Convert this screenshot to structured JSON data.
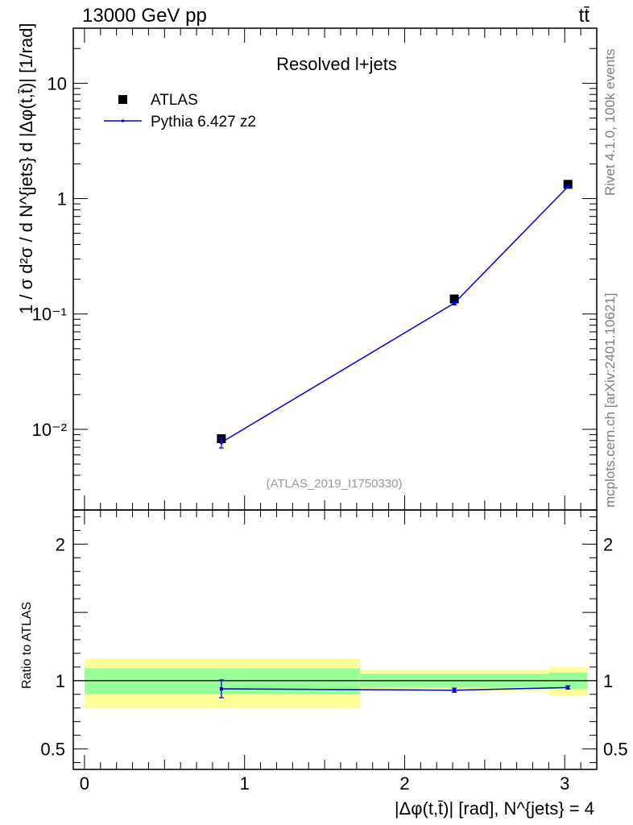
{
  "header": {
    "energy_label": "13000 GeV pp",
    "process_label": "tt̄"
  },
  "side": {
    "rivet_label": "Rivet 4.1.0,  100k events",
    "mcplots_label": "mcplots.cern.ch [arXiv:2401.10621]"
  },
  "chart_data": [
    {
      "type": "scatter",
      "panel": "main",
      "title": "Resolved l+jets",
      "analysis_label": "(ATLAS_2019_I1750330)",
      "ylabel": "1 / σ d²σ / d N^{jets} d |Δφ(t,t̄)| [1/rad]",
      "yscale": "log",
      "ylim": [
        0.002,
        30
      ],
      "xlim": [
        -0.07,
        3.2
      ],
      "y_ticks": [
        {
          "value": 0.01,
          "label": "10⁻²"
        },
        {
          "value": 0.1,
          "label": "10⁻¹"
        },
        {
          "value": 1,
          "label": "1"
        },
        {
          "value": 10,
          "label": "10"
        }
      ],
      "legend_position": "top-left",
      "series": [
        {
          "name": "ATLAS",
          "style": "marker",
          "color": "#000000",
          "x": [
            0.855,
            2.31,
            3.02
          ],
          "y": [
            0.0083,
            0.135,
            1.33
          ]
        },
        {
          "name": "Pythia 6.427 z2",
          "style": "line",
          "color": "#0000dd",
          "x": [
            0.855,
            2.31,
            3.02
          ],
          "y": [
            0.0077,
            0.124,
            1.27
          ],
          "yerr": [
            0.0008,
            0.004,
            0.03
          ]
        }
      ]
    },
    {
      "type": "line",
      "panel": "ratio",
      "ylabel": "Ratio to ATLAS",
      "xlabel": "|Δφ(t,t̄)| [rad], N^{jets} = 4",
      "ylim": [
        0.35,
        2.25
      ],
      "xlim": [
        -0.07,
        3.2
      ],
      "y_ticks": [
        {
          "value": 0.5,
          "label": "0.5"
        },
        {
          "value": 1,
          "label": "1"
        },
        {
          "value": 2,
          "label": "2"
        }
      ],
      "x_ticks": [
        {
          "value": 0,
          "label": "0"
        },
        {
          "value": 1,
          "label": "1"
        },
        {
          "value": 2,
          "label": "2"
        },
        {
          "value": 3,
          "label": "3"
        }
      ],
      "bands": [
        {
          "x_lo": 0.0,
          "x_hi": 1.72,
          "y1_lo": 0.9,
          "y1_hi": 1.09,
          "y2_lo": 0.8,
          "y2_hi": 1.16
        },
        {
          "x_lo": 1.72,
          "x_hi": 2.9,
          "y1_lo": 0.95,
          "y1_hi": 1.05,
          "y2_lo": 0.92,
          "y2_hi": 1.08
        },
        {
          "x_lo": 2.9,
          "x_hi": 3.14,
          "y1_lo": 0.94,
          "y1_hi": 1.06,
          "y2_lo": 0.89,
          "y2_hi": 1.1
        }
      ],
      "series": [
        {
          "name": "Pythia 6.427 z2",
          "color": "#0000dd",
          "x": [
            0.855,
            2.31,
            3.02
          ],
          "y": [
            0.94,
            0.93,
            0.95
          ],
          "yerr": [
            0.065,
            0.015,
            0.012
          ]
        }
      ]
    }
  ],
  "colors": {
    "band_inner": "#99ff99",
    "band_outer": "#ffff99",
    "data": "#000000",
    "mc": "#0000dd",
    "side_text": "#7f7f7f",
    "analysis_text": "#999999"
  }
}
